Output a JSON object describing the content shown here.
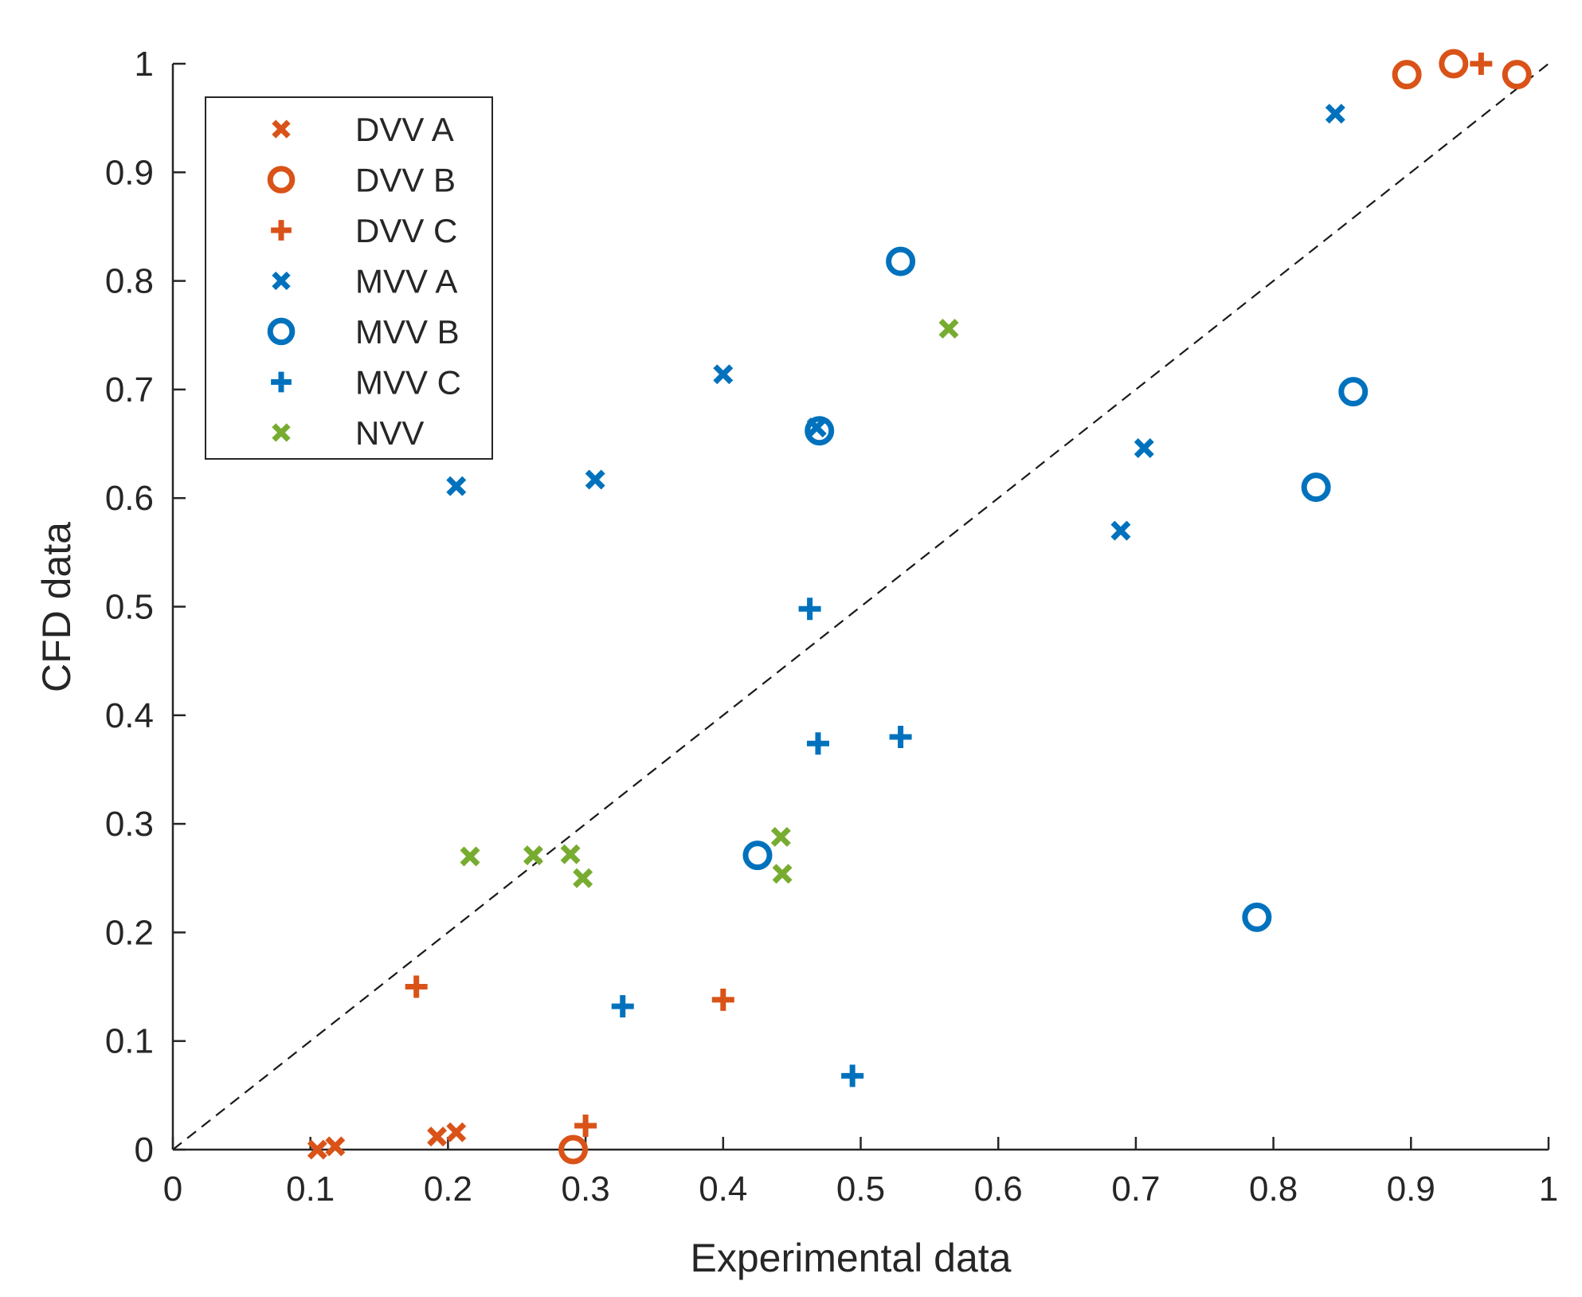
{
  "chart_data": {
    "type": "scatter",
    "title": "",
    "xlabel": "Experimental data",
    "ylabel": "CFD data",
    "xlim": [
      0,
      1
    ],
    "ylim": [
      0,
      1
    ],
    "xticks": [
      "0",
      "0.1",
      "0.2",
      "0.3",
      "0.4",
      "0.5",
      "0.6",
      "0.7",
      "0.8",
      "0.9",
      "1"
    ],
    "yticks": [
      "0",
      "0.1",
      "0.2",
      "0.3",
      "0.4",
      "0.5",
      "0.6",
      "0.7",
      "0.8",
      "0.9",
      "1"
    ],
    "grid": false,
    "legend_position": "top-left",
    "reference_line": {
      "style": "dashed",
      "from": [
        0,
        0
      ],
      "to": [
        1,
        1
      ],
      "color": "#1a1a1a"
    },
    "series": [
      {
        "name": "DVV A",
        "marker": "x",
        "color": "#D95319",
        "points": [
          [
            0.105,
            0.0
          ],
          [
            0.118,
            0.003
          ],
          [
            0.192,
            0.012
          ],
          [
            0.206,
            0.016
          ]
        ]
      },
      {
        "name": "DVV B",
        "marker": "o",
        "color": "#D95319",
        "points": [
          [
            0.291,
            0.0
          ],
          [
            0.897,
            0.99
          ],
          [
            0.931,
            1.0
          ],
          [
            0.977,
            0.99
          ]
        ]
      },
      {
        "name": "DVV C",
        "marker": "+",
        "color": "#D95319",
        "points": [
          [
            0.177,
            0.15
          ],
          [
            0.3,
            0.022
          ],
          [
            0.4,
            0.138
          ],
          [
            0.951,
            1.0
          ]
        ]
      },
      {
        "name": "MVV A",
        "marker": "x",
        "color": "#0072BD",
        "points": [
          [
            0.206,
            0.611
          ],
          [
            0.307,
            0.617
          ],
          [
            0.4,
            0.714
          ],
          [
            0.468,
            0.665
          ],
          [
            0.689,
            0.57
          ],
          [
            0.706,
            0.646
          ],
          [
            0.845,
            0.954
          ]
        ]
      },
      {
        "name": "MVV B",
        "marker": "o",
        "color": "#0072BD",
        "points": [
          [
            0.425,
            0.271
          ],
          [
            0.47,
            0.662
          ],
          [
            0.529,
            0.818
          ],
          [
            0.788,
            0.214
          ],
          [
            0.831,
            0.61
          ],
          [
            0.858,
            0.698
          ]
        ]
      },
      {
        "name": "MVV C",
        "marker": "+",
        "color": "#0072BD",
        "points": [
          [
            0.327,
            0.132
          ],
          [
            0.463,
            0.498
          ],
          [
            0.469,
            0.374
          ],
          [
            0.494,
            0.068
          ],
          [
            0.529,
            0.38
          ]
        ]
      },
      {
        "name": "NVV",
        "marker": "x",
        "color": "#77AC30",
        "points": [
          [
            0.216,
            0.27
          ],
          [
            0.262,
            0.271
          ],
          [
            0.289,
            0.272
          ],
          [
            0.298,
            0.25
          ],
          [
            0.442,
            0.288
          ],
          [
            0.443,
            0.254
          ],
          [
            0.564,
            0.756
          ]
        ]
      }
    ]
  }
}
